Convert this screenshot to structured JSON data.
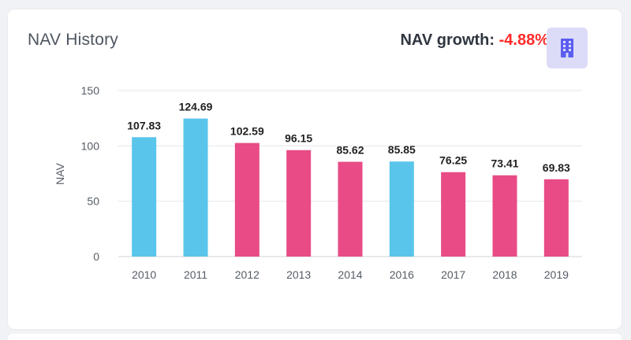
{
  "card": {
    "title": "NAV History",
    "growth_label": "NAV growth:",
    "growth_value": "-4.88%",
    "icon": "building-icon"
  },
  "colors": {
    "positive_bar": "#5ac5ea",
    "negative_bar": "#e84b86",
    "growth_negative": "#ff2a2a",
    "icon_bg": "#dcdcf8",
    "icon_fg": "#5b5ef0"
  },
  "chart_data": {
    "type": "bar",
    "title": "",
    "xlabel": "",
    "ylabel": "NAV",
    "ylim": [
      0,
      150
    ],
    "yticks": [
      0,
      50,
      100,
      150
    ],
    "grid": true,
    "categories": [
      "2010",
      "2011",
      "2012",
      "2013",
      "2014",
      "2016",
      "2017",
      "2018",
      "2019"
    ],
    "values": [
      107.83,
      124.69,
      102.59,
      96.15,
      85.62,
      85.85,
      76.25,
      73.41,
      69.83
    ],
    "value_labels": [
      "107.83",
      "124.69",
      "102.59",
      "96.15",
      "85.62",
      "85.85",
      "76.25",
      "73.41",
      "69.83"
    ],
    "bar_colors": [
      "#5ac5ea",
      "#5ac5ea",
      "#e84b86",
      "#e84b86",
      "#e84b86",
      "#5ac5ea",
      "#e84b86",
      "#e84b86",
      "#e84b86"
    ]
  }
}
